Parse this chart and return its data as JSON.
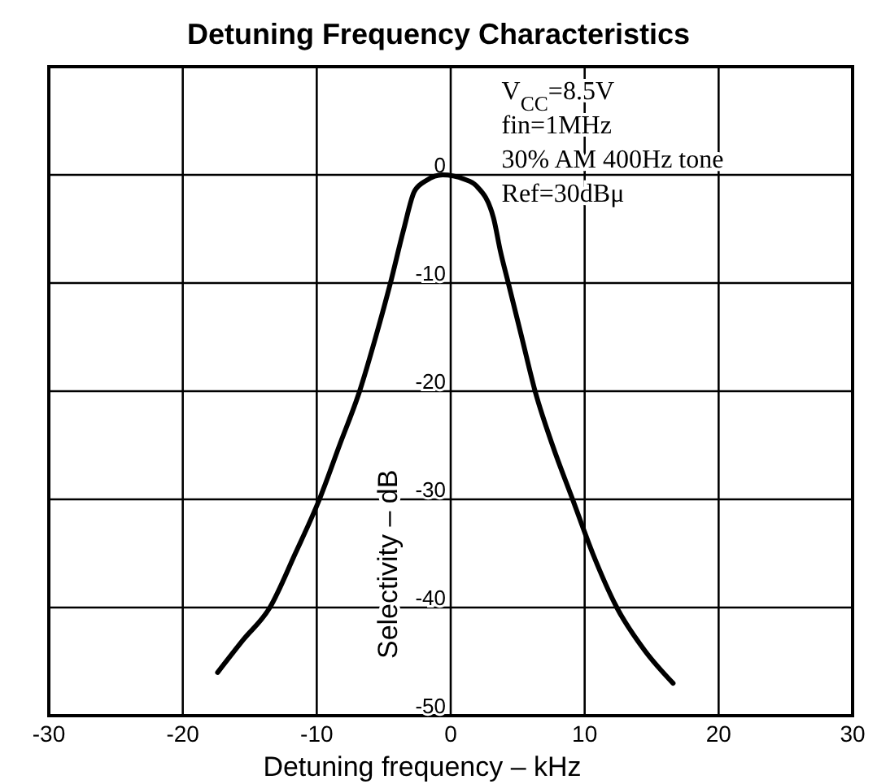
{
  "chart_data": {
    "type": "line",
    "title": "Detuning Frequency Characteristics",
    "xlabel": "Detuning frequency – kHz",
    "ylabel": "Selectivity – dB",
    "x": [
      -17.4,
      -15.5,
      -13.5,
      -11.6,
      -9.8,
      -8.3,
      -6.8,
      -5.6,
      -4.5,
      -3.5,
      -2.7,
      -1.8,
      -0.6,
      1.0,
      1.9,
      3.2,
      3.7,
      4.3,
      5.3,
      6.3,
      7.6,
      9.1,
      10.6,
      12.4,
      14.5,
      16.6
    ],
    "series": [
      {
        "color": "#000000",
        "values": [
          -46,
          -43,
          -40,
          -35,
          -30,
          -25,
          -20,
          -15,
          -10,
          -5,
          -1.5,
          -0.5,
          0,
          -0.4,
          -1,
          -4,
          -7,
          -10,
          -15,
          -20,
          -25,
          -30,
          -35,
          -40,
          -44,
          -47
        ]
      }
    ],
    "xlim": [
      -30,
      30
    ],
    "xticks": [
      -30,
      -20,
      -10,
      0,
      10,
      20,
      30
    ],
    "ylim": [
      -50,
      10
    ],
    "yticks": [
      {
        "value": 10,
        "label": null
      },
      0,
      -10,
      -20,
      -30,
      -40,
      -50
    ],
    "grid": true,
    "marker": "none",
    "line_style": "solid",
    "annotations": [
      "V$_{CC}$=8.5V",
      "fin=1MHz",
      "30% AM 400Hz tone",
      "Ref=30dBμ"
    ]
  }
}
